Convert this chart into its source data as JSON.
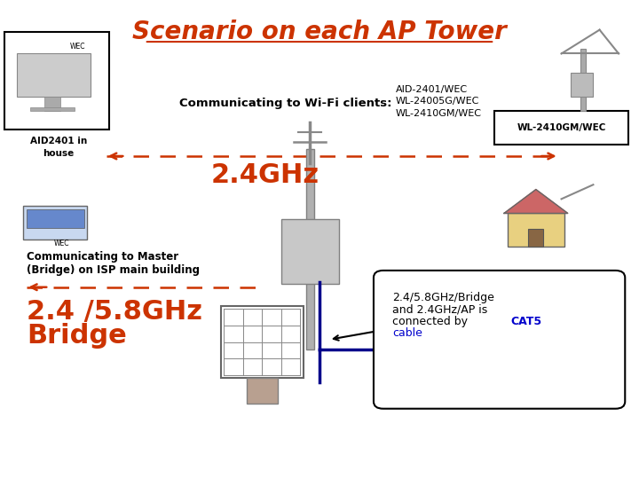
{
  "title": "Scenario on each AP Tower",
  "title_color": "#cc3300",
  "title_fontsize": 20,
  "background_color": "#ffffff",
  "wifi_label_bold": "Communicating to Wi-Fi clients:",
  "wifi_products_line1": "AID-2401/WEC",
  "wifi_products_line2": "WL-24005G/WEC",
  "wifi_products_line3": "WL-2410GM/WEC",
  "wifi_label_color": "#000000",
  "wifi_products_color": "#000000",
  "wl2410_label": "WL-2410GM/WEC",
  "wl2410_label_color": "#000000",
  "aid_label_line1": "AID2401 in",
  "aid_label_line2": "house",
  "aid_label_color": "#000000",
  "ghz24_label": "2.4GHz",
  "ghz24_color": "#cc3300",
  "ghz24_fontsize": 22,
  "comm_master_line1": "Communicating to Master",
  "comm_master_line2": "(Bridge) on ISP main building",
  "comm_master_color": "#000000",
  "bridge_line1": "2.4 /5.8GHz",
  "bridge_line2": "Bridge",
  "bridge_color": "#cc3300",
  "bridge_fontsize": 22,
  "callout_text1": "2.4/5.8GHz/Bridge",
  "callout_text2": "and 2.4GHz/AP is",
  "callout_text3": "connected by ",
  "callout_cat5": "CAT5",
  "callout_text4": "cable",
  "callout_bg": "#ffffff",
  "callout_border": "#000000",
  "callout_blue": "#0000cc",
  "arrow_color": "#cc3300",
  "cable_color": "#00008b"
}
